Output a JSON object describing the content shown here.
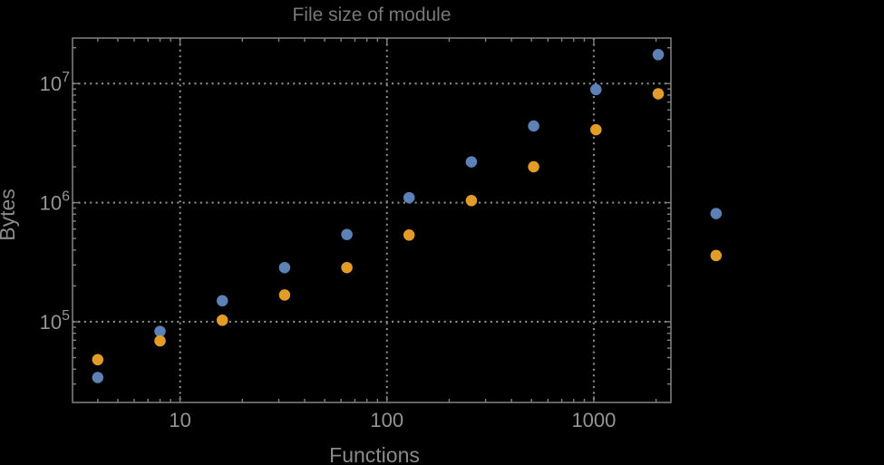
{
  "colors": {
    "background": "#000000",
    "frame": "#828282",
    "grid": "#8b8b8b",
    "tick_text": "#959595",
    "axis_label_text": "#8a8a8a",
    "title_text": "#787878",
    "series_blue": "#5b81b7",
    "series_orange": "#e39c28"
  },
  "chart_data": {
    "type": "scatter",
    "title": "File size of module",
    "xlabel": "Functions",
    "ylabel": "Bytes",
    "x_scale": "log",
    "y_scale": "log",
    "xlim": [
      3.02,
      2360
    ],
    "ylim": [
      21000,
      24100000
    ],
    "x_ticks": [
      10,
      100,
      1000
    ],
    "x_tick_labels": [
      "10",
      "100",
      "1000"
    ],
    "y_ticks": [
      100000,
      1000000,
      10000000
    ],
    "y_tick_labels": [
      "10^5",
      "10^6",
      "10^7"
    ],
    "grid": "dotted",
    "legend": "none",
    "marker_diameter_px": 12.5,
    "clip_points": false,
    "series": [
      {
        "name": "blue",
        "color": "#5b81b7",
        "points": [
          [
            4,
            34000
          ],
          [
            8,
            83000
          ],
          [
            16,
            150000
          ],
          [
            32,
            285000
          ],
          [
            64,
            540000
          ],
          [
            128,
            1100000
          ],
          [
            256,
            2200000
          ],
          [
            512,
            4400000
          ],
          [
            1024,
            8900000
          ],
          [
            2048,
            17500000
          ],
          [
            3900,
            810000
          ]
        ]
      },
      {
        "name": "orange",
        "color": "#e39c28",
        "points": [
          [
            4,
            48000
          ],
          [
            8,
            69000
          ],
          [
            16,
            103000
          ],
          [
            32,
            168000
          ],
          [
            64,
            285000
          ],
          [
            128,
            535000
          ],
          [
            256,
            1040000
          ],
          [
            512,
            2000000
          ],
          [
            1024,
            4100000
          ],
          [
            2048,
            8200000
          ],
          [
            3900,
            360000
          ]
        ]
      }
    ]
  }
}
